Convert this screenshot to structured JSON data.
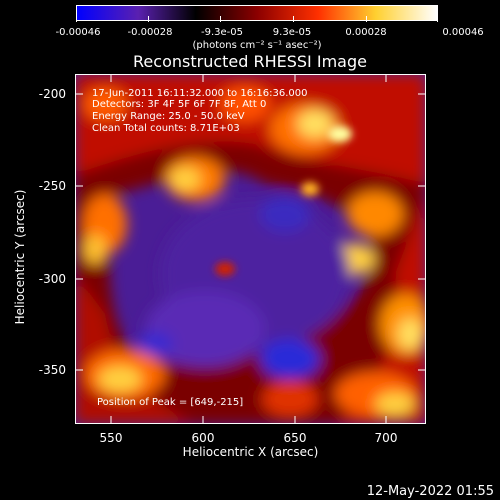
{
  "colorbar": {
    "tick_labels": [
      "-0.00046",
      "-0.00028",
      "-9.3e-05",
      "9.3e-05",
      "0.00028",
      "0.00046"
    ],
    "units": "(photons cm⁻² s⁻¹ asec⁻²)",
    "colors": [
      "#0000ff",
      "#5a20b0",
      "#000000",
      "#8b0000",
      "#ff3000",
      "#ffd030",
      "#ffffff"
    ]
  },
  "plot": {
    "title": "Reconstructed RHESSI Image",
    "annotations": {
      "time": "17-Jun-2011 16:11:32.000 to 16:16:36.000",
      "detectors": "Detectors: 3F 4F 5F 6F 7F 8F, Att 0",
      "energy": "Energy Range: 25.0 - 50.0 keV",
      "clean": "Clean    Total counts: 8.71E+03",
      "peak": "Position of Peak = [649,-215]"
    },
    "xlabel": "Heliocentric X (arcsec)",
    "ylabel": "Heliocentric Y (arcsec)",
    "xticks": [
      "550",
      "600",
      "650",
      "700"
    ],
    "yticks": [
      "-200",
      "-250",
      "-300",
      "-350"
    ]
  },
  "footer": {
    "timestamp": "12-May-2022 01:55"
  }
}
